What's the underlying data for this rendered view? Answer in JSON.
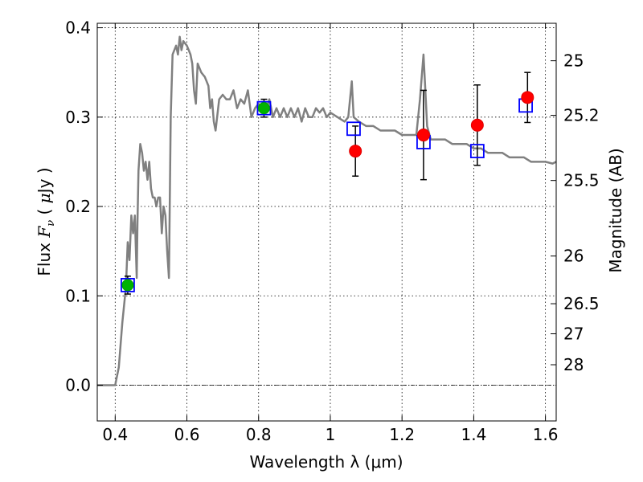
{
  "chart_data": {
    "type": "scatter",
    "xlabel": "Wavelength  λ (μm)",
    "ylabel": "Flux  F_ν  ( μJy )",
    "ylabel_right": "Magnitude (AB)",
    "xlim": [
      0.35,
      1.63
    ],
    "ylim": [
      -0.04,
      0.405
    ],
    "grid": true,
    "x_ticks": [
      {
        "v": 0.4,
        "label": "0.4"
      },
      {
        "v": 0.6,
        "label": "0.6"
      },
      {
        "v": 0.8,
        "label": "0.8"
      },
      {
        "v": 1.0,
        "label": "1"
      },
      {
        "v": 1.2,
        "label": "1.2"
      },
      {
        "v": 1.4,
        "label": "1.4"
      },
      {
        "v": 1.6,
        "label": "1.6"
      }
    ],
    "y_ticks": [
      {
        "v": 0.0,
        "label": "0.0"
      },
      {
        "v": 0.1,
        "label": "0.1"
      },
      {
        "v": 0.2,
        "label": "0.2"
      },
      {
        "v": 0.3,
        "label": "0.3"
      },
      {
        "v": 0.4,
        "label": "0.4"
      }
    ],
    "right_ticks": [
      {
        "mag": 25,
        "label": "25"
      },
      {
        "mag": 25.2,
        "label": "25.2"
      },
      {
        "mag": 25.5,
        "label": "25.5"
      },
      {
        "mag": 26,
        "label": "26"
      },
      {
        "mag": 26.5,
        "label": "26.5"
      },
      {
        "mag": 27,
        "label": "27"
      },
      {
        "mag": 28,
        "label": "28"
      }
    ],
    "colors": {
      "model": "#808080",
      "green": "#00b300",
      "red": "#ff0000",
      "blue": "#0000ff",
      "errorbar": "#000000",
      "grid": "#000000"
    },
    "model_spectrum": [
      [
        0.35,
        0.0
      ],
      [
        0.4,
        0.0
      ],
      [
        0.41,
        0.02
      ],
      [
        0.42,
        0.07
      ],
      [
        0.43,
        0.11
      ],
      [
        0.435,
        0.16
      ],
      [
        0.44,
        0.14
      ],
      [
        0.445,
        0.19
      ],
      [
        0.45,
        0.17
      ],
      [
        0.455,
        0.19
      ],
      [
        0.46,
        0.12
      ],
      [
        0.462,
        0.18
      ],
      [
        0.465,
        0.24
      ],
      [
        0.47,
        0.27
      ],
      [
        0.475,
        0.26
      ],
      [
        0.48,
        0.24
      ],
      [
        0.485,
        0.25
      ],
      [
        0.49,
        0.23
      ],
      [
        0.495,
        0.25
      ],
      [
        0.5,
        0.22
      ],
      [
        0.505,
        0.21
      ],
      [
        0.51,
        0.21
      ],
      [
        0.515,
        0.2
      ],
      [
        0.52,
        0.21
      ],
      [
        0.525,
        0.21
      ],
      [
        0.53,
        0.17
      ],
      [
        0.535,
        0.2
      ],
      [
        0.54,
        0.19
      ],
      [
        0.545,
        0.15
      ],
      [
        0.55,
        0.12
      ],
      [
        0.555,
        0.3
      ],
      [
        0.56,
        0.37
      ],
      [
        0.57,
        0.38
      ],
      [
        0.575,
        0.37
      ],
      [
        0.58,
        0.39
      ],
      [
        0.585,
        0.375
      ],
      [
        0.59,
        0.385
      ],
      [
        0.6,
        0.38
      ],
      [
        0.605,
        0.375
      ],
      [
        0.61,
        0.37
      ],
      [
        0.615,
        0.36
      ],
      [
        0.62,
        0.33
      ],
      [
        0.625,
        0.315
      ],
      [
        0.63,
        0.36
      ],
      [
        0.64,
        0.35
      ],
      [
        0.65,
        0.345
      ],
      [
        0.66,
        0.335
      ],
      [
        0.665,
        0.31
      ],
      [
        0.67,
        0.32
      ],
      [
        0.675,
        0.295
      ],
      [
        0.68,
        0.285
      ],
      [
        0.69,
        0.32
      ],
      [
        0.7,
        0.325
      ],
      [
        0.71,
        0.32
      ],
      [
        0.72,
        0.32
      ],
      [
        0.73,
        0.33
      ],
      [
        0.74,
        0.31
      ],
      [
        0.75,
        0.32
      ],
      [
        0.76,
        0.315
      ],
      [
        0.77,
        0.33
      ],
      [
        0.78,
        0.3
      ],
      [
        0.79,
        0.31
      ],
      [
        0.8,
        0.315
      ],
      [
        0.81,
        0.31
      ],
      [
        0.82,
        0.305
      ],
      [
        0.83,
        0.32
      ],
      [
        0.84,
        0.3
      ],
      [
        0.85,
        0.31
      ],
      [
        0.86,
        0.3
      ],
      [
        0.87,
        0.31
      ],
      [
        0.88,
        0.3
      ],
      [
        0.89,
        0.31
      ],
      [
        0.9,
        0.3
      ],
      [
        0.91,
        0.31
      ],
      [
        0.92,
        0.295
      ],
      [
        0.93,
        0.31
      ],
      [
        0.94,
        0.3
      ],
      [
        0.95,
        0.3
      ],
      [
        0.96,
        0.31
      ],
      [
        0.97,
        0.305
      ],
      [
        0.98,
        0.31
      ],
      [
        0.99,
        0.3
      ],
      [
        1.0,
        0.305
      ],
      [
        1.02,
        0.3
      ],
      [
        1.04,
        0.295
      ],
      [
        1.05,
        0.3
      ],
      [
        1.06,
        0.34
      ],
      [
        1.065,
        0.3
      ],
      [
        1.08,
        0.295
      ],
      [
        1.1,
        0.29
      ],
      [
        1.12,
        0.29
      ],
      [
        1.14,
        0.285
      ],
      [
        1.16,
        0.285
      ],
      [
        1.18,
        0.285
      ],
      [
        1.2,
        0.28
      ],
      [
        1.22,
        0.28
      ],
      [
        1.24,
        0.28
      ],
      [
        1.25,
        0.32
      ],
      [
        1.26,
        0.37
      ],
      [
        1.265,
        0.33
      ],
      [
        1.27,
        0.29
      ],
      [
        1.28,
        0.275
      ],
      [
        1.3,
        0.275
      ],
      [
        1.32,
        0.275
      ],
      [
        1.34,
        0.27
      ],
      [
        1.36,
        0.27
      ],
      [
        1.38,
        0.27
      ],
      [
        1.4,
        0.265
      ],
      [
        1.42,
        0.265
      ],
      [
        1.44,
        0.26
      ],
      [
        1.46,
        0.26
      ],
      [
        1.48,
        0.26
      ],
      [
        1.5,
        0.255
      ],
      [
        1.52,
        0.255
      ],
      [
        1.54,
        0.255
      ],
      [
        1.56,
        0.25
      ],
      [
        1.58,
        0.25
      ],
      [
        1.6,
        0.25
      ],
      [
        1.62,
        0.248
      ],
      [
        1.63,
        0.25
      ]
    ],
    "green_points": [
      {
        "x": 0.435,
        "y": 0.112,
        "err": 0.01
      },
      {
        "x": 0.815,
        "y": 0.31,
        "err": 0.01
      }
    ],
    "red_points": [
      {
        "x": 1.07,
        "y": 0.262,
        "err": 0.028
      },
      {
        "x": 1.26,
        "y": 0.28,
        "err": 0.05
      },
      {
        "x": 1.41,
        "y": 0.291,
        "err": 0.045
      },
      {
        "x": 1.55,
        "y": 0.322,
        "err": 0.028
      }
    ],
    "blue_boxes": [
      {
        "x": 0.435,
        "y": 0.112
      },
      {
        "x": 0.815,
        "y": 0.31
      },
      {
        "x": 1.065,
        "y": 0.287
      },
      {
        "x": 1.26,
        "y": 0.272
      },
      {
        "x": 1.41,
        "y": 0.262
      },
      {
        "x": 1.545,
        "y": 0.313
      }
    ]
  }
}
